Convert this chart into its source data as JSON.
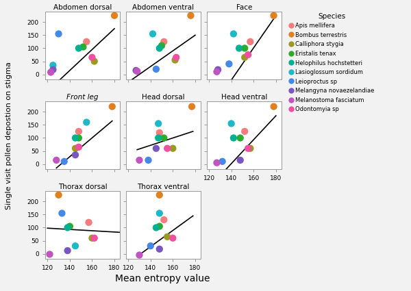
{
  "panels": [
    {
      "title": "Abdomen dorsal",
      "italic": false,
      "row": 0,
      "col": 0,
      "points": {
        "Apis mellifera": [
          155,
          125
        ],
        "Bombus terrestris": [
          180,
          225
        ],
        "Calliphora stygia": [
          162,
          50
        ],
        "Eristalis tenax": [
          152,
          105
        ],
        "Helophilus hochstetteri": [
          148,
          100
        ],
        "Lasioglossum sordidum": [
          125,
          35
        ],
        "Leioproctus sp": [
          130,
          155
        ],
        "Melangyna novaezelandiae": [
          125,
          18
        ],
        "Melanostoma fasciatum": [
          123,
          8
        ],
        "Odontomyia sp": [
          160,
          65
        ]
      },
      "regression": [
        120,
        -65,
        180,
        175
      ]
    },
    {
      "title": "Abdomen ventral",
      "italic": false,
      "row": 0,
      "col": 1,
      "points": {
        "Apis mellifera": [
          152,
          125
        ],
        "Bombus terrestris": [
          176,
          225
        ],
        "Calliphora stygia": [
          162,
          55
        ],
        "Eristalis tenax": [
          150,
          110
        ],
        "Helophilus hochstetteri": [
          148,
          100
        ],
        "Lasioglossum sordidum": [
          142,
          155
        ],
        "Leioproctus sp": [
          145,
          20
        ],
        "Melangyna novaezelandiae": [
          127,
          15
        ],
        "Melanostoma fasciatum": [
          128,
          12
        ],
        "Odontomyia sp": [
          163,
          65
        ]
      },
      "regression": [
        120,
        -30,
        180,
        150
      ]
    },
    {
      "title": "Face",
      "italic": false,
      "row": 0,
      "col": 2,
      "points": {
        "Apis mellifera": [
          157,
          125
        ],
        "Bombus terrestris": [
          178,
          225
        ],
        "Calliphora stygia": [
          152,
          65
        ],
        "Eristalis tenax": [
          152,
          100
        ],
        "Helophilus hochstetteri": [
          147,
          100
        ],
        "Lasioglossum sordidum": [
          142,
          155
        ],
        "Leioproctus sp": [
          138,
          40
        ],
        "Melangyna novaezelandiae": [
          128,
          18
        ],
        "Melanostoma fasciatum": [
          127,
          10
        ],
        "Odontomyia sp": [
          155,
          75
        ]
      },
      "regression": [
        120,
        -145,
        180,
        225
      ]
    },
    {
      "title": "Front leg",
      "italic": true,
      "row": 1,
      "col": 0,
      "points": {
        "Apis mellifera": [
          148,
          125
        ],
        "Bombus terrestris": [
          178,
          220
        ],
        "Calliphora stygia": [
          145,
          60
        ],
        "Eristalis tenax": [
          148,
          100
        ],
        "Helophilus hochstetteri": [
          145,
          100
        ],
        "Lasioglossum sordidum": [
          155,
          160
        ],
        "Leioproctus sp": [
          135,
          10
        ],
        "Melangyna novaezelandiae": [
          145,
          35
        ],
        "Melanostoma fasciatum": [
          128,
          15
        ],
        "Odontomyia sp": [
          148,
          65
        ]
      },
      "regression": [
        128,
        -15,
        178,
        165
      ]
    },
    {
      "title": "Head dorsal",
      "italic": false,
      "row": 1,
      "col": 1,
      "points": {
        "Apis mellifera": [
          148,
          120
        ],
        "Bombus terrestris": [
          177,
          220
        ],
        "Calliphora stygia": [
          160,
          60
        ],
        "Eristalis tenax": [
          152,
          100
        ],
        "Helophilus hochstetteri": [
          147,
          100
        ],
        "Lasioglossum sordidum": [
          147,
          155
        ],
        "Leioproctus sp": [
          138,
          15
        ],
        "Melangyna novaezelandiae": [
          145,
          60
        ],
        "Melanostoma fasciatum": [
          130,
          15
        ],
        "Odontomyia sp": [
          155,
          60
        ]
      },
      "regression": [
        128,
        55,
        178,
        125
      ]
    },
    {
      "title": "Head ventral",
      "italic": false,
      "row": 1,
      "col": 2,
      "points": {
        "Apis mellifera": [
          152,
          125
        ],
        "Bombus terrestris": [
          178,
          220
        ],
        "Calliphora stygia": [
          157,
          60
        ],
        "Eristalis tenax": [
          148,
          100
        ],
        "Helophilus hochstetteri": [
          142,
          100
        ],
        "Lasioglossum sordidum": [
          140,
          155
        ],
        "Leioproctus sp": [
          132,
          10
        ],
        "Melangyna novaezelandiae": [
          148,
          15
        ],
        "Melanostoma fasciatum": [
          127,
          5
        ],
        "Odontomyia sp": [
          155,
          60
        ]
      },
      "regression": [
        120,
        -90,
        180,
        185
      ]
    },
    {
      "title": "Thorax dorsal",
      "italic": false,
      "row": 2,
      "col": 0,
      "points": {
        "Apis mellifera": [
          157,
          120
        ],
        "Bombus terrestris": [
          130,
          225
        ],
        "Calliphora stygia": [
          160,
          60
        ],
        "Eristalis tenax": [
          140,
          105
        ],
        "Helophilus hochstetteri": [
          138,
          100
        ],
        "Lasioglossum sordidum": [
          145,
          30
        ],
        "Leioproctus sp": [
          133,
          155
        ],
        "Melangyna novaezelandiae": [
          138,
          12
        ],
        "Melanostoma fasciatum": [
          122,
          -2
        ],
        "Odontomyia sp": [
          162,
          60
        ]
      },
      "regression": [
        120,
        98,
        185,
        82
      ]
    },
    {
      "title": "Thorax ventral",
      "italic": false,
      "row": 2,
      "col": 1,
      "points": {
        "Apis mellifera": [
          152,
          130
        ],
        "Bombus terrestris": [
          148,
          225
        ],
        "Calliphora stygia": [
          155,
          65
        ],
        "Eristalis tenax": [
          148,
          105
        ],
        "Helophilus hochstetteri": [
          145,
          100
        ],
        "Lasioglossum sordidum": [
          148,
          155
        ],
        "Leioproctus sp": [
          140,
          30
        ],
        "Melangyna novaezelandiae": [
          148,
          18
        ],
        "Melanostoma fasciatum": [
          130,
          -5
        ],
        "Odontomyia sp": [
          160,
          60
        ]
      },
      "regression": [
        128,
        -10,
        178,
        145
      ]
    }
  ],
  "species_colors": {
    "Apis mellifera": "#f47c7c",
    "Bombus terrestris": "#e08020",
    "Calliphora stygia": "#9a9a20",
    "Eristalis tenax": "#2eaa2e",
    "Helophilus hochstetteri": "#00b090",
    "Lasioglossum sordidum": "#20b8c8",
    "Leioproctus sp": "#4488e8",
    "Melangyna novaezelandiae": "#7858c0",
    "Melanostoma fasciatum": "#c055c0",
    "Odontomyia sp": "#f050a0"
  },
  "species_order": [
    "Apis mellifera",
    "Bombus terrestris",
    "Calliphora stygia",
    "Eristalis tenax",
    "Helophilus hochstetteri",
    "Lasioglossum sordidum",
    "Leioproctus sp",
    "Melangyna novaezelandiae",
    "Melanostoma fasciatum",
    "Odontomyia sp"
  ],
  "xlim": [
    118,
    185
  ],
  "ylim": [
    -20,
    240
  ],
  "xticks": [
    120,
    140,
    160,
    180
  ],
  "yticks": [
    0,
    50,
    100,
    150,
    200
  ],
  "xlabel": "Mean entropy value",
  "ylabel": "Single visit pollen depostion on stigma",
  "legend_title": "Species",
  "point_size": 55,
  "background_color": "#f2f2f2",
  "panel_bg": "#ffffff"
}
